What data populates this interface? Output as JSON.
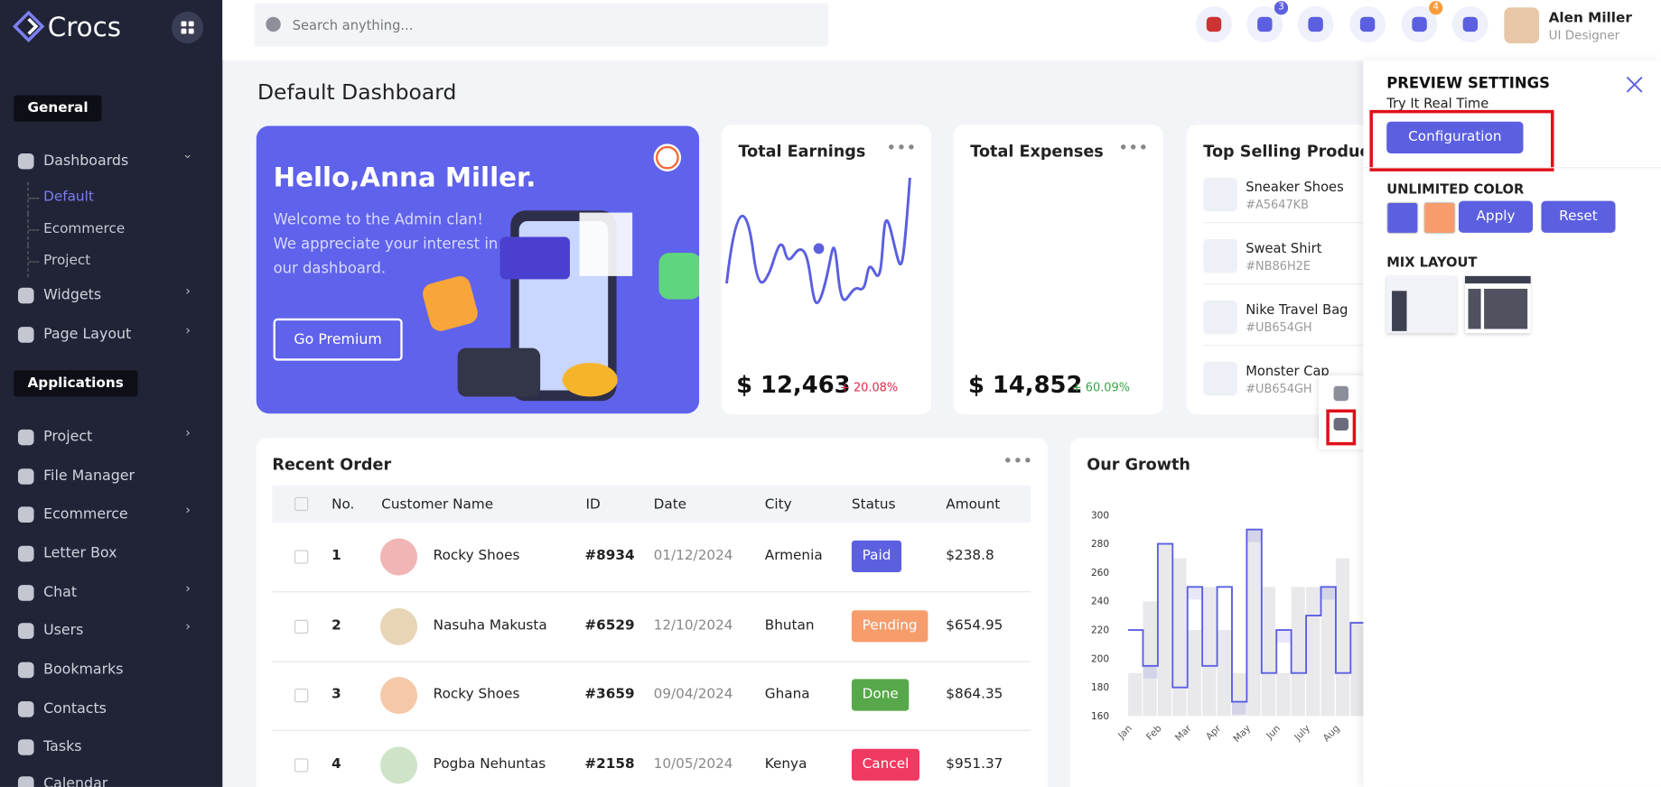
{
  "header": {
    "logo": "Crocs",
    "search_placeholder": "Search anything...",
    "badges": [
      "3",
      "4"
    ],
    "user_name": "Alen Miller",
    "user_role": "UI Designer"
  },
  "sidebar": {
    "sections": [
      {
        "title": "General",
        "items": [
          {
            "label": "Dashboards",
            "children": [
              "Default",
              "Ecommerce",
              "Project"
            ]
          },
          {
            "label": "Widgets"
          },
          {
            "label": "Page Layout"
          }
        ]
      },
      {
        "title": "Applications",
        "items": [
          {
            "label": "Project"
          },
          {
            "label": "File Manager"
          },
          {
            "label": "Ecommerce"
          },
          {
            "label": "Letter Box"
          },
          {
            "label": "Chat"
          },
          {
            "label": "Users"
          },
          {
            "label": "Bookmarks"
          },
          {
            "label": "Contacts"
          },
          {
            "label": "Tasks"
          },
          {
            "label": "Calendar"
          }
        ]
      }
    ]
  },
  "page_title": "Default Dashboard",
  "hero": {
    "greeting": "Hello,Anna Miller.",
    "message": "Welcome to the Admin clan! We appreciate your interest in our dashboard.",
    "button": "Go Premium"
  },
  "cards": [
    {
      "title": "Total Earnings",
      "amount": "$ 12,463",
      "change": "+ 20.08%"
    },
    {
      "title": "Total Expenses",
      "amount": "$ 14,852",
      "change": "+ 60.09%"
    }
  ],
  "top_selling": {
    "title": "Top Selling Product",
    "products": [
      {
        "name": "Sneaker Shoes",
        "code": "#A5647KB"
      },
      {
        "name": "Sweat Shirt",
        "code": "#NB86H2E"
      },
      {
        "name": "Nike Travel Bag",
        "code": "#UB654GH"
      },
      {
        "name": "Monster Cap",
        "code": "#UB654GH"
      }
    ]
  },
  "recent_order": {
    "title": "Recent Order",
    "columns": [
      "No.",
      "Customer Name",
      "ID",
      "Date",
      "City",
      "Status",
      "Amount"
    ],
    "rows": [
      [
        "1",
        "Rocky Shoes",
        "#8934",
        "01/12/2024",
        "Armenia",
        "Paid",
        "$238.8"
      ],
      [
        "2",
        "Nasuha Makusta",
        "#6529",
        "12/10/2024",
        "Bhutan",
        "Pending",
        "$654.95"
      ],
      [
        "3",
        "Rocky Shoes",
        "#3659",
        "09/04/2024",
        "Ghana",
        "Done",
        "$864.35"
      ],
      [
        "4",
        "Pogba Nehuntas",
        "#2158",
        "10/05/2024",
        "Kenya",
        "Cancel",
        "$951.37"
      ]
    ]
  },
  "growth_chart": {
    "title": "Our Growth",
    "type": "bar",
    "categories": [
      "Jan",
      null,
      "Feb",
      null,
      "Mar",
      null,
      "Apr",
      null,
      "May",
      null,
      "Jun",
      null,
      "July",
      null,
      "Aug",
      null
    ],
    "ylim": [
      160,
      300
    ],
    "yticks": [
      160,
      180,
      200,
      220,
      240,
      260,
      280,
      300
    ],
    "series": [
      {
        "color": "#e9e9ec",
        "values": [
          190,
          240,
          280,
          270,
          220,
          250,
          220,
          190,
          290,
          250,
          190,
          250,
          250,
          250,
          270,
          225
        ]
      },
      {
        "color": "#5b5fe0",
        "values": [
          220,
          195,
          280,
          180,
          250,
          195,
          250,
          170,
          290,
          190,
          220,
          190,
          230,
          250,
          190,
          225
        ]
      }
    ]
  },
  "settings_panel": {
    "title": "PREVIEW SETTINGS",
    "subtitle": "Try It Real Time",
    "config_button": "Configuration",
    "color_heading": "UNLIMITED COLOR",
    "apply": "Apply",
    "reset": "Reset",
    "layout_heading": "MIX LAYOUT"
  }
}
